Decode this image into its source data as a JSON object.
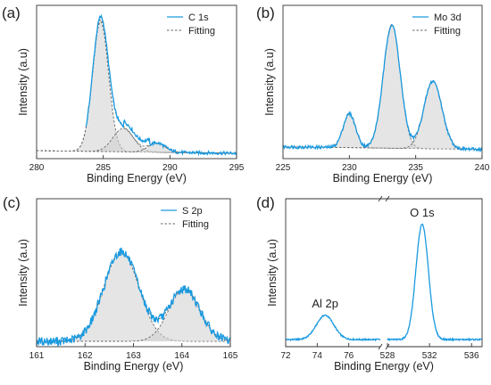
{
  "colors": {
    "data": "#1a9ae0",
    "fit": "#666666",
    "fill": "#cfcfcf",
    "axis": "#333333"
  },
  "chart_data": [
    {
      "panel": "(a)",
      "type": "line",
      "xlabel": "Binding Energy (eV)",
      "ylabel": "Intensity (a.u)",
      "xlim": [
        280,
        295
      ],
      "xticks": [
        "280",
        "285",
        "290",
        "295"
      ],
      "legend": {
        "position": "top-right",
        "entries": [
          "C 1s",
          "Fitting"
        ]
      },
      "peaks": [
        {
          "center": 284.8,
          "height": 1.0,
          "width": 1.4
        },
        {
          "center": 286.5,
          "height": 0.18,
          "width": 1.8
        },
        {
          "center": 289.0,
          "height": 0.07,
          "width": 1.5
        }
      ],
      "baseline": [
        0.02,
        0.0
      ],
      "data_starts_at": 283.7
    },
    {
      "panel": "(b)",
      "type": "line",
      "xlabel": "Binding Energy (eV)",
      "ylabel": "Intensity (a.u)",
      "xlim": [
        225,
        240
      ],
      "xticks": [
        "225",
        "230",
        "235",
        "240"
      ],
      "legend": {
        "position": "top-right",
        "entries": [
          "Mo 3d",
          "Fitting"
        ]
      },
      "peaks": [
        {
          "center": 230.0,
          "height": 0.26,
          "width": 1.1
        },
        {
          "center": 233.2,
          "height": 0.95,
          "width": 1.5
        },
        {
          "center": 236.3,
          "height": 0.52,
          "width": 1.6
        }
      ],
      "baseline": [
        0.05,
        0.03
      ],
      "data_starts_at": 225.0
    },
    {
      "panel": "(c)",
      "type": "line",
      "xlabel": "",
      "ylabel": "Intensity (a.u)",
      "xlim": [
        161,
        165
      ],
      "xticks": [
        "161",
        "162",
        "163",
        "164",
        "165"
      ],
      "legend": {
        "position": "top-right",
        "entries": [
          "S 2p",
          "Fitting"
        ]
      },
      "peaks": [
        {
          "center": 162.75,
          "height": 0.72,
          "width": 0.85
        },
        {
          "center": 164.05,
          "height": 0.42,
          "width": 0.75
        }
      ],
      "baseline": [
        0.0,
        0.0
      ],
      "data_starts_at": 161.0
    },
    {
      "panel": "(d)",
      "type": "line",
      "xlabel": "Binding Energy (eV)",
      "ylabel": "Intensity (a.u)",
      "segments": [
        {
          "xlim": [
            72,
            78
          ],
          "xticks": [
            "72",
            "74",
            "76"
          ],
          "annotation": "Al 2p",
          "peaks": [
            {
              "center": 74.5,
              "height": 0.2,
              "width": 1.3
            }
          ]
        },
        {
          "xlim": [
            528,
            537
          ],
          "xticks": [
            "528",
            "532",
            "536"
          ],
          "annotation": "O 1s",
          "peaks": [
            {
              "center": 531.3,
              "height": 0.95,
              "width": 1.4
            }
          ]
        }
      ]
    }
  ],
  "shared_xlabel": "Binding Energy (eV)"
}
